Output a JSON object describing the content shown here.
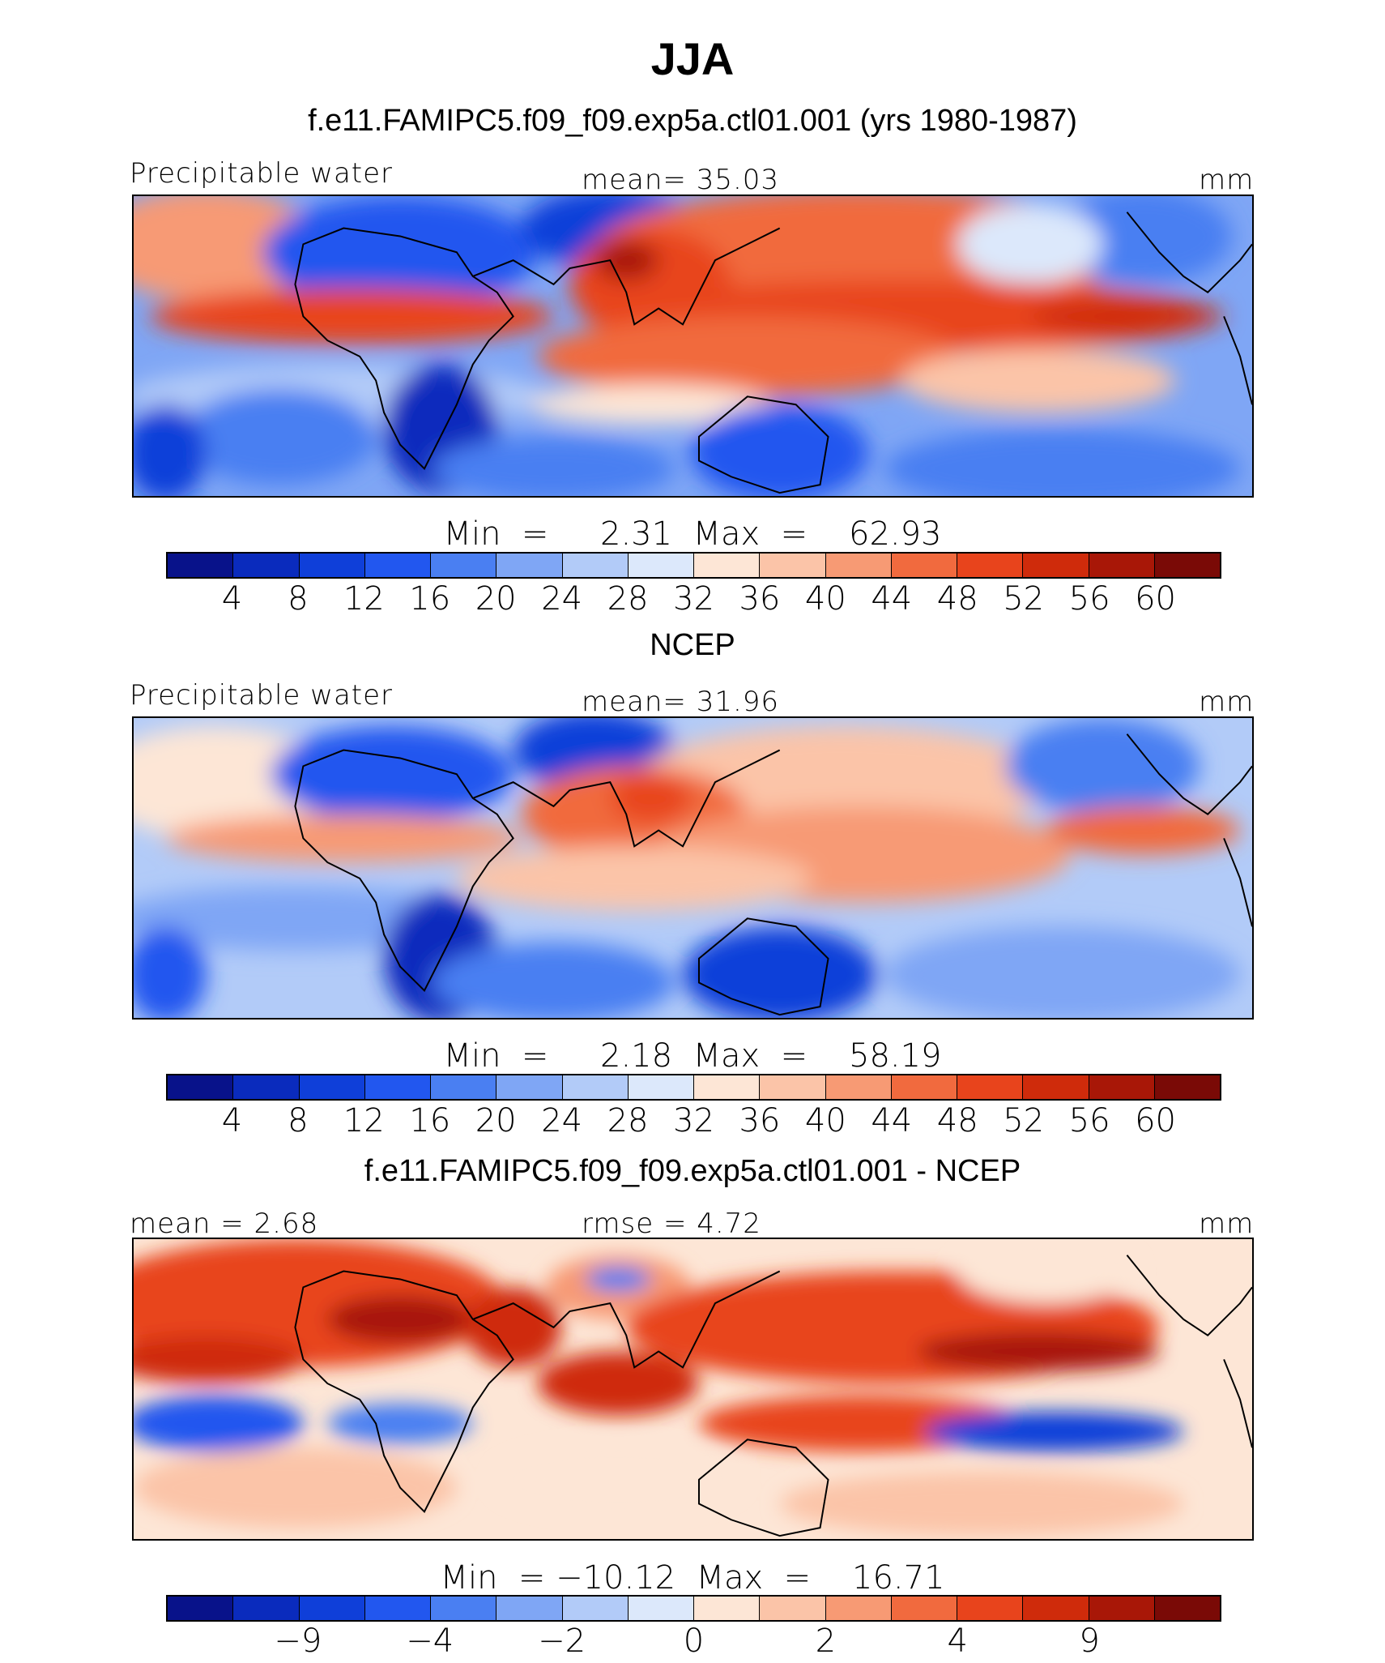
{
  "title": "JJA",
  "colors": {
    "abs_palette": [
      "#08128a",
      "#0a2bbd",
      "#0f3fd9",
      "#2257ef",
      "#4a7ff2",
      "#7fa6f5",
      "#b2cbf8",
      "#dce8fb",
      "#fde6d6",
      "#fbc4a8",
      "#f79a74",
      "#f16a3e",
      "#e8441c",
      "#cf2b0b",
      "#a81707",
      "#7a0a06"
    ],
    "diff_palette": [
      "#08128a",
      "#0a2bbd",
      "#0f3fd9",
      "#2257ef",
      "#4a7ff2",
      "#7fa6f5",
      "#b2cbf8",
      "#dce8fb",
      "#fde6d6",
      "#fbc4a8",
      "#f79a74",
      "#f16a3e",
      "#e8441c",
      "#cf2b0b",
      "#a81707",
      "#7a0a06"
    ]
  },
  "panels": [
    {
      "heading": "f.e11.FAMIPC5.f09_f09.exp5a.ctl01.001 (yrs 1980-1987)",
      "left_label": "Precipitable water",
      "center_label": "mean=  35.03",
      "right_label": "mm",
      "minmax": "Min  =     2.31  Max  =    62.93",
      "ticks": [
        "4",
        "8",
        "12",
        "16",
        "20",
        "24",
        "28",
        "32",
        "36",
        "40",
        "44",
        "48",
        "52",
        "56",
        "60"
      ]
    },
    {
      "heading": "NCEP",
      "left_label": "Precipitable water",
      "center_label": "mean=  31.96",
      "right_label": "mm",
      "minmax": "Min  =     2.18  Max  =    58.19",
      "ticks": [
        "4",
        "8",
        "12",
        "16",
        "20",
        "24",
        "28",
        "32",
        "36",
        "40",
        "44",
        "48",
        "52",
        "56",
        "60"
      ]
    },
    {
      "heading": "f.e11.FAMIPC5.f09_f09.exp5a.ctl01.001 - NCEP",
      "left_label": "mean  =    2.68",
      "center_label": "rmse  =    4.72",
      "right_label": "mm",
      "minmax": "Min  = −10.12  Max  =    16.71",
      "ticks": [
        "−9",
        "−4",
        "−2",
        "0",
        "2",
        "4",
        "9"
      ]
    }
  ]
}
